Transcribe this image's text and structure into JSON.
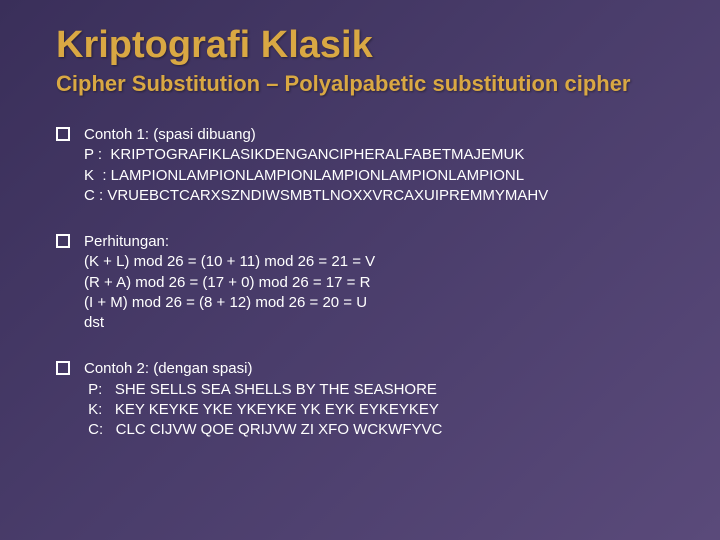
{
  "title": "Kriptografi Klasik",
  "subtitle": "Cipher Substitution – Polyalpabetic substitution cipher",
  "blocks": [
    {
      "lines": [
        "Contoh 1: (spasi dibuang)",
        "P :  KRIPTOGRAFIKLASIKDENGANCIPHERALFABETMAJEMUK",
        "K  : LAMPIONLAMPIONLAMPIONLAMPIONLAMPIONLAMPIONL",
        "C : VRUEBCTCARXSZNDIWSMBTLNOXXVRCAXUIPREMMYMAHV"
      ]
    },
    {
      "lines": [
        "Perhitungan:",
        "(K + L) mod 26 = (10 + 11) mod 26 = 21 = V",
        "(R + A) mod 26 = (17 + 0) mod 26 = 17 = R",
        "(I + M) mod 26 = (8 + 12) mod 26 = 20 = U",
        "dst"
      ]
    },
    {
      "lines": [
        "Contoh 2: (dengan spasi)",
        " P:   SHE SELLS SEA SHELLS BY THE SEASHORE",
        " K:   KEY KEYKE YKE YKEYKE YK EYK EYKEYKEY",
        " C:   CLC CIJVW QOE QRIJVW ZI XFO WCKWFYVC"
      ]
    }
  ],
  "colors": {
    "title_color": "#d9a843",
    "text_color": "#ffffff",
    "bg_start": "#3a2f5a",
    "bg_end": "#5a4a7a"
  },
  "fonts": {
    "title_size": 38,
    "subtitle_size": 22,
    "body_size": 15
  }
}
